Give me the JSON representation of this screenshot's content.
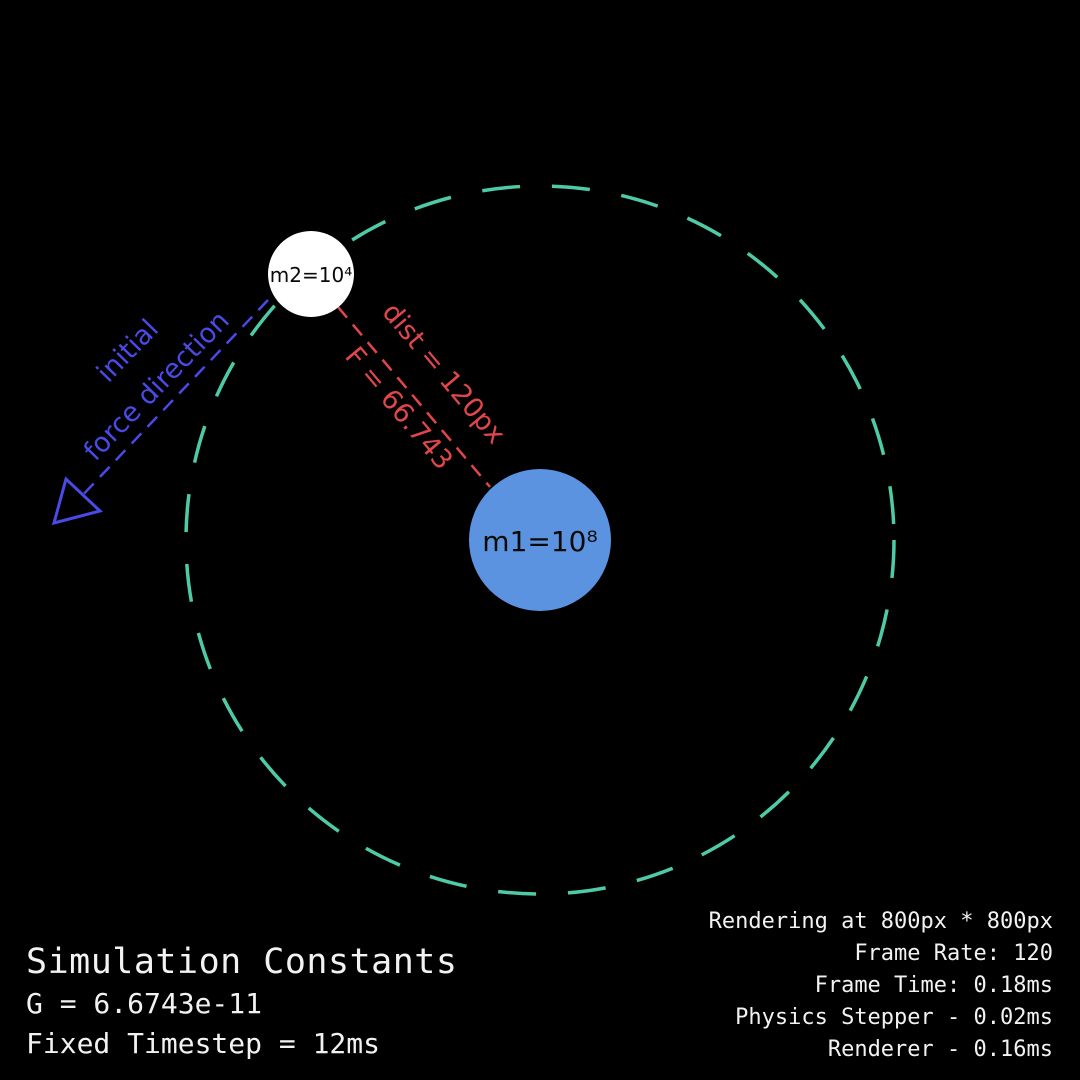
{
  "masses": {
    "m1_label": "m1=10⁸",
    "m2_label": "m2=10⁴"
  },
  "annotations": {
    "dist_label": "dist = 120px",
    "force_label": "F = 66.743",
    "direction_line1": "initial",
    "direction_line2": "force direction"
  },
  "constants": {
    "title": "Simulation Constants",
    "g": "G = 6.6743e-11",
    "timestep": "Fixed Timestep = 12ms"
  },
  "stats": {
    "rendering": "Rendering at 800px * 800px",
    "frame_rate": "Frame Rate: 120",
    "frame_time": "Frame Time: 0.18ms",
    "physics": "Physics Stepper - 0.02ms",
    "renderer": "Renderer - 0.16ms"
  },
  "colors": {
    "background": "#000000",
    "orbit": "#4ecba6",
    "m1_fill": "#5b93e1",
    "m2_fill": "#ffffff",
    "distance": "#e0474b",
    "direction": "#4a4ae6",
    "text": "#f2f2f2"
  }
}
